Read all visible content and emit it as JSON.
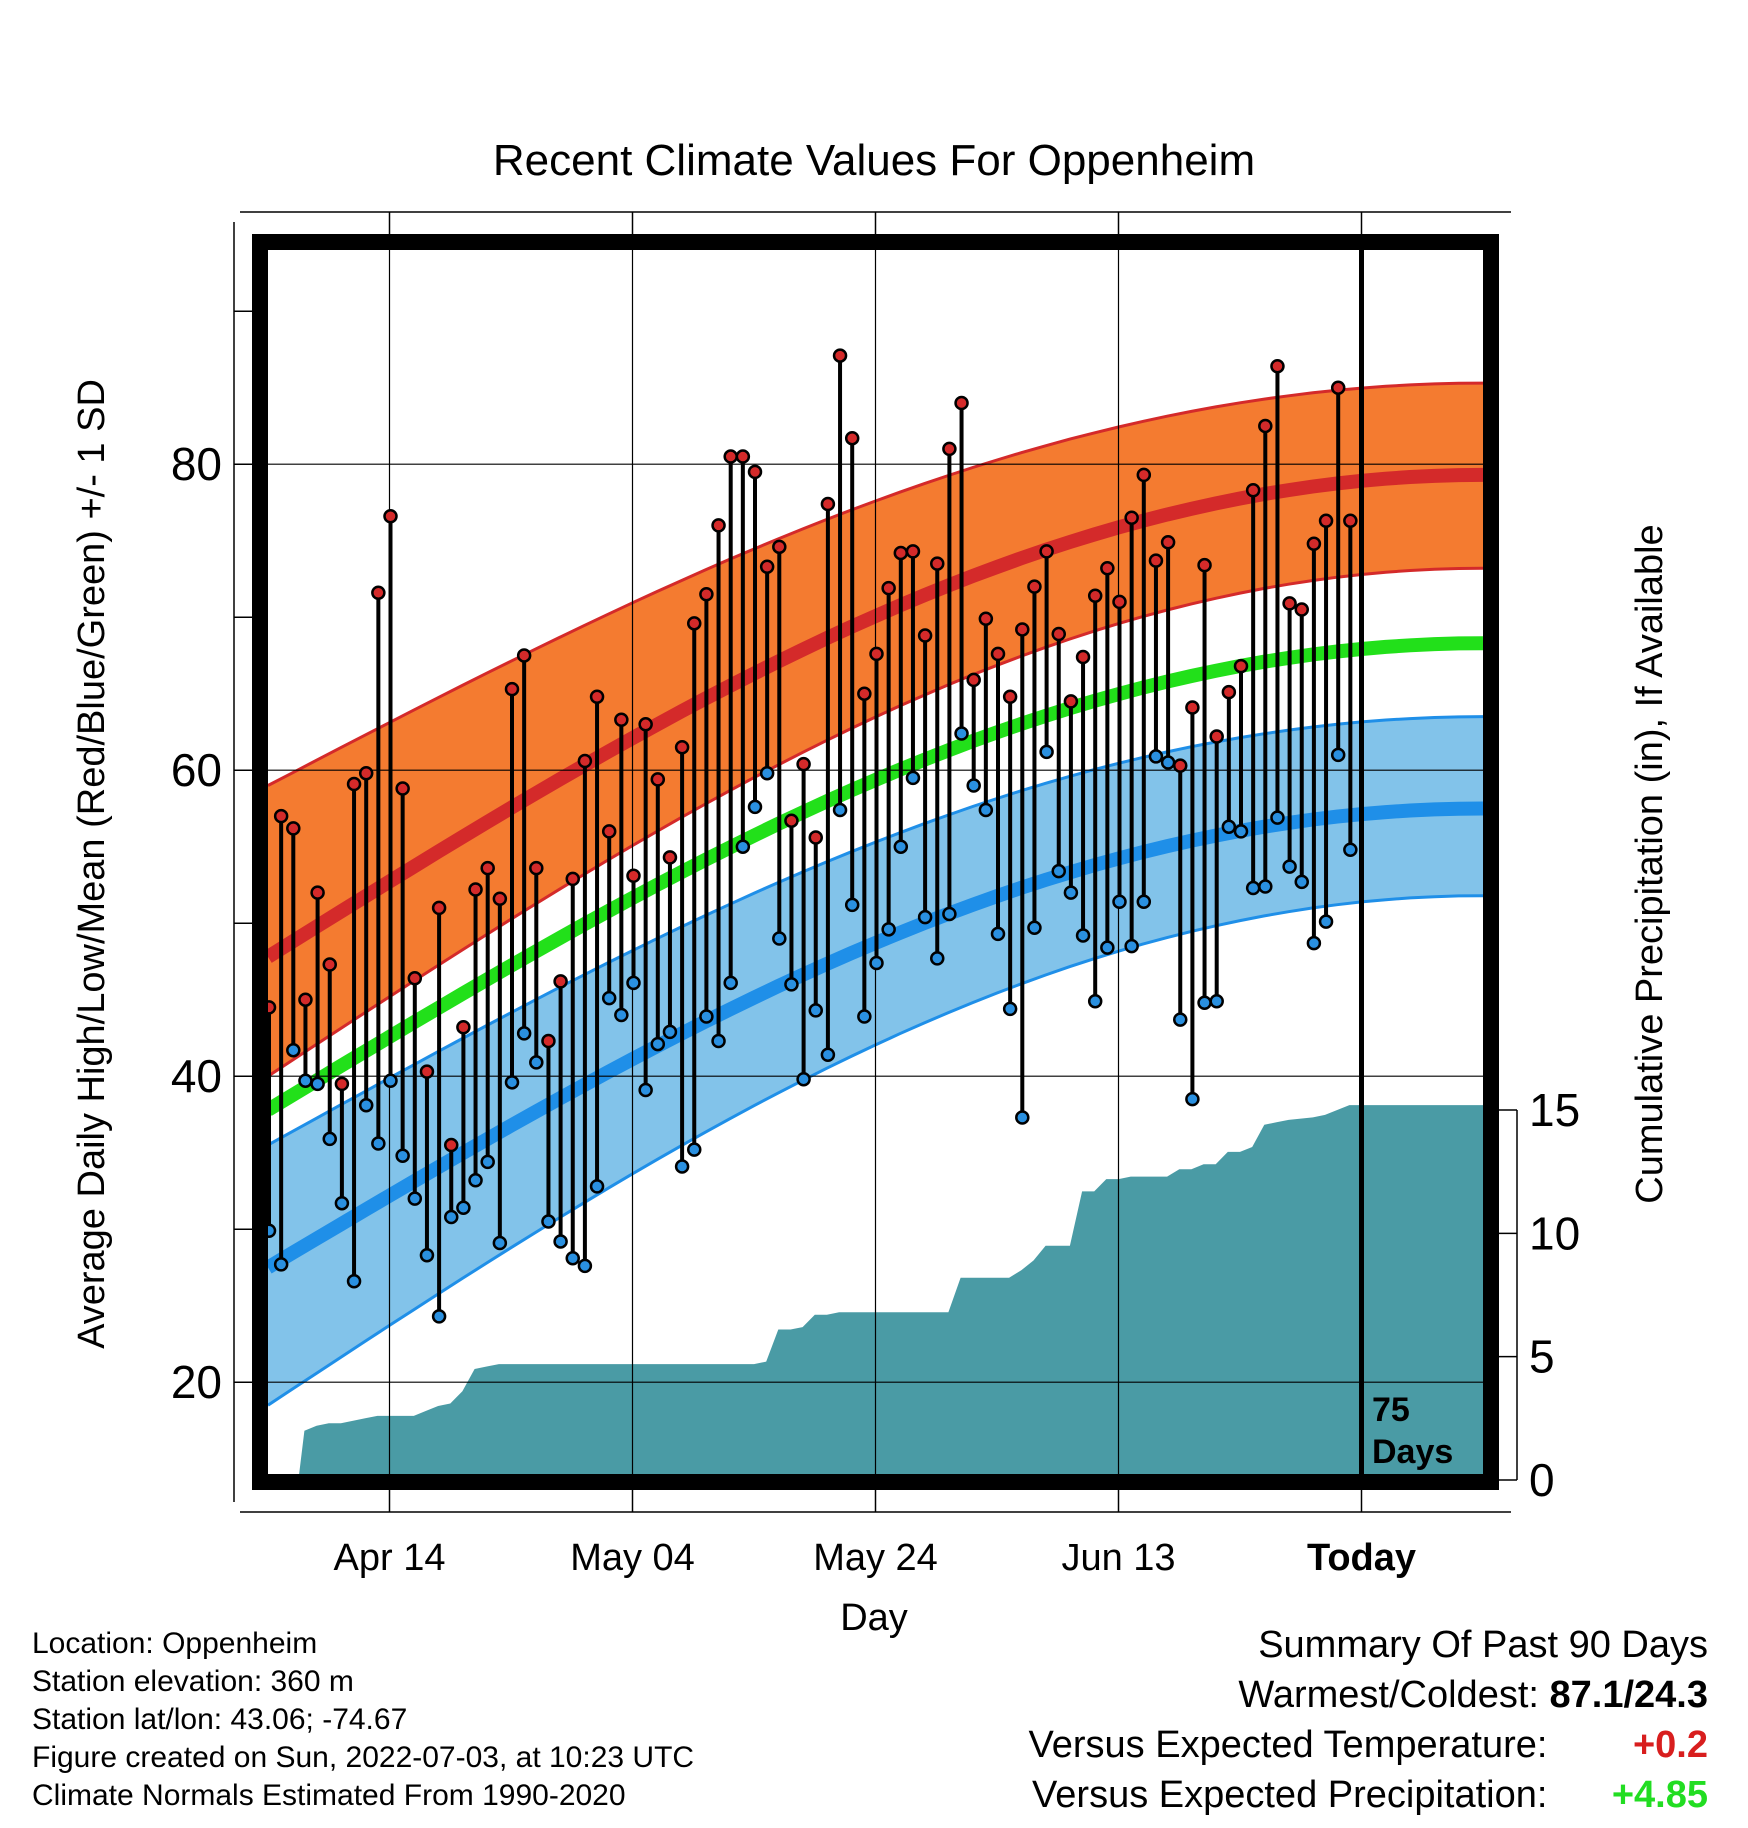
{
  "title": "Recent Climate Values For Oppenheim",
  "ylabel_left": "Average Daily High/Low/Mean (Red/Blue/Green) +/- 1 SD",
  "ylabel_right": "Cumulative Precipitation (in), If Available",
  "xlabel": "Day",
  "today_label": [
    "75",
    "Days"
  ],
  "footer": {
    "location": "Location: Oppenheim",
    "elevation": "Station elevation: 360 m",
    "latlon": "Station lat/lon: 43.06; -74.67",
    "created": "Figure created on Sun, 2022-07-03, at 10:23 UTC",
    "normals": "Climate Normals Estimated From 1990-2020"
  },
  "summary": {
    "heading": "Summary Of Past 90 Days",
    "warm_cold_label": "Warmest/Coldest:",
    "warm_cold_value": "87.1/24.3",
    "temp_label": "Versus Expected Temperature:",
    "temp_value": "+0.2",
    "precip_label": "Versus Expected Precipitation:",
    "precip_value": "+4.85"
  },
  "colors": {
    "high_band": "#f47b30",
    "high_mean": "#d42a2a",
    "low_band": "#82c3ea",
    "low_mean": "#1f8fe8",
    "mean_line": "#22e01a",
    "precip": "#4a9ba5",
    "high_dot": "#d42a2a",
    "low_dot": "#2a90e0"
  },
  "chart_data": {
    "type": "line",
    "x_unit": "day index (0 = Apr 3, today = day 90 = Jul 2)",
    "x_range": [
      0,
      100
    ],
    "y_left": [
      14,
      94
    ],
    "y_right": [
      0,
      15
    ],
    "y_left_ticks": [
      20,
      40,
      60,
      80
    ],
    "y_right_ticks": [
      0,
      5,
      10,
      15
    ],
    "x_ticks": [
      {
        "day": 10,
        "label": "Apr 14"
      },
      {
        "day": 30,
        "label": "May 04"
      },
      {
        "day": 50,
        "label": "May 24"
      },
      {
        "day": 70,
        "label": "Jun 13"
      },
      {
        "day": 90,
        "label": "Today"
      }
    ],
    "normal_high": {
      "start": 47.8,
      "end": 79.3
    },
    "normal_high_sd": {
      "upper_start": 59.0,
      "upper_end": 85.3,
      "lower_start": 40.0,
      "lower_end": 73.2
    },
    "normal_mean": {
      "start": 37.8,
      "end": 68.3
    },
    "normal_low": {
      "start": 27.5,
      "end": 57.5
    },
    "normal_low_sd": {
      "upper_start": 35.5,
      "upper_end": 63.5,
      "lower_start": 18.5,
      "lower_end": 51.8
    },
    "daily_high": [
      44.5,
      57.0,
      56.2,
      45.0,
      52.0,
      47.3,
      39.5,
      59.1,
      59.8,
      71.6,
      76.6,
      58.8,
      46.4,
      40.3,
      51.0,
      35.5,
      43.2,
      52.2,
      53.6,
      51.6,
      65.3,
      67.5,
      53.6,
      42.3,
      46.2,
      52.9,
      60.6,
      64.8,
      56.0,
      63.3,
      53.1,
      63.0,
      59.4,
      54.3,
      61.5,
      69.6,
      71.5,
      76.0,
      80.5,
      80.5,
      79.5,
      73.3,
      74.6,
      56.7,
      60.4,
      55.6,
      77.4,
      87.1,
      81.7,
      65.0,
      67.6,
      71.9,
      74.2,
      74.3,
      68.8,
      73.5,
      81.0,
      84.0,
      65.9,
      69.9,
      67.6,
      64.8,
      69.2,
      72.0,
      74.3,
      68.9,
      64.5,
      67.4,
      71.4,
      73.2,
      71.0,
      76.5,
      79.3,
      73.7,
      74.9,
      60.3,
      64.1,
      73.4,
      62.2,
      65.1,
      66.8,
      78.3,
      82.5,
      86.4,
      70.9,
      70.5,
      74.8,
      76.3,
      85.0,
      76.3
    ],
    "daily_low": [
      29.9,
      27.7,
      41.7,
      39.7,
      39.5,
      35.9,
      31.7,
      26.6,
      38.1,
      35.6,
      39.7,
      34.8,
      32.0,
      28.3,
      24.3,
      30.8,
      31.4,
      33.2,
      34.4,
      29.1,
      39.6,
      42.8,
      40.9,
      30.5,
      29.2,
      28.1,
      27.6,
      32.8,
      45.1,
      44.0,
      46.1,
      39.1,
      42.1,
      42.9,
      34.1,
      35.2,
      43.9,
      42.3,
      46.1,
      55.0,
      57.6,
      59.8,
      49.0,
      46.0,
      39.8,
      44.3,
      41.4,
      57.4,
      51.2,
      43.9,
      47.4,
      49.6,
      55.0,
      59.5,
      50.4,
      47.7,
      50.6,
      62.4,
      59.0,
      57.4,
      49.3,
      44.4,
      37.3,
      49.7,
      61.2,
      53.4,
      52.0,
      49.2,
      44.9,
      48.4,
      51.4,
      48.5,
      51.4,
      60.9,
      60.5,
      43.7,
      38.5,
      44.8,
      44.9,
      56.3,
      56.0,
      52.3,
      52.4,
      56.9,
      53.7,
      52.7,
      48.7,
      50.1,
      61.0,
      54.8
    ],
    "cumulative_precip": [
      [
        0,
        0
      ],
      [
        2.5,
        0
      ],
      [
        3,
        2
      ],
      [
        4,
        2.2
      ],
      [
        5,
        2.3
      ],
      [
        6,
        2.3
      ],
      [
        7,
        2.4
      ],
      [
        8,
        2.5
      ],
      [
        9,
        2.6
      ],
      [
        10,
        2.6
      ],
      [
        11,
        2.6
      ],
      [
        12,
        2.6
      ],
      [
        13,
        2.8
      ],
      [
        14,
        3
      ],
      [
        15,
        3.1
      ],
      [
        16,
        3.6
      ],
      [
        17,
        4.5
      ],
      [
        18,
        4.6
      ],
      [
        19,
        4.7
      ],
      [
        25,
        4.7
      ],
      [
        32,
        4.7
      ],
      [
        40,
        4.7
      ],
      [
        41,
        4.8
      ],
      [
        42,
        6.1
      ],
      [
        43,
        6.1
      ],
      [
        44,
        6.2
      ],
      [
        45,
        6.7
      ],
      [
        46,
        6.7
      ],
      [
        47,
        6.8
      ],
      [
        50,
        6.8
      ],
      [
        55,
        6.8
      ],
      [
        56,
        6.8
      ],
      [
        57,
        8.2
      ],
      [
        58,
        8.2
      ],
      [
        61,
        8.2
      ],
      [
        62,
        8.5
      ],
      [
        63,
        8.9
      ],
      [
        64,
        9.5
      ],
      [
        65,
        9.5
      ],
      [
        66,
        9.5
      ],
      [
        67,
        11.7
      ],
      [
        68,
        11.7
      ],
      [
        69,
        12.2
      ],
      [
        70,
        12.2
      ],
      [
        71,
        12.3
      ],
      [
        74,
        12.3
      ],
      [
        75,
        12.6
      ],
      [
        76,
        12.6
      ],
      [
        77,
        12.8
      ],
      [
        78,
        12.8
      ],
      [
        79,
        13.3
      ],
      [
        80,
        13.3
      ],
      [
        81,
        13.5
      ],
      [
        82,
        14.4
      ],
      [
        83,
        14.5
      ],
      [
        84,
        14.6
      ],
      [
        86,
        14.7
      ],
      [
        87,
        14.8
      ],
      [
        88,
        15.0
      ],
      [
        89,
        15.2
      ],
      [
        90,
        15.2
      ],
      [
        100,
        15.2
      ]
    ]
  }
}
